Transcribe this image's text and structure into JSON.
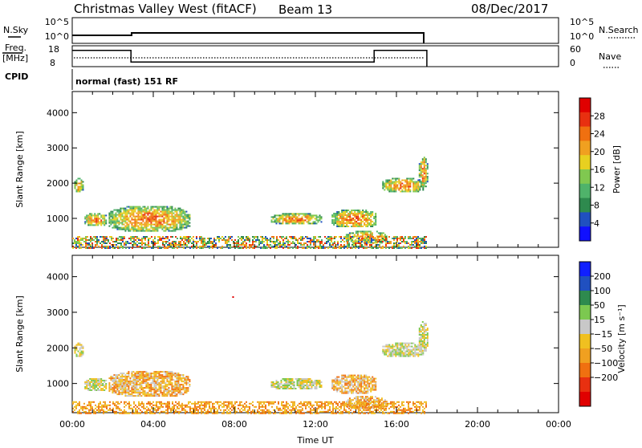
{
  "header": {
    "title": "Christmas Valley West (fitACF)",
    "beam": "Beam 13",
    "date": "08/Dec/2017"
  },
  "sky_panel": {
    "left_label": "N.Sky",
    "left_ticks": [
      "10^5",
      "10^0"
    ],
    "right_label": "N.Search",
    "right_ticks": [
      "10^5",
      "10^0"
    ]
  },
  "freq_panel": {
    "left_label_top": "Freq.",
    "left_label_bottom": "[MHz]",
    "left_ticks": [
      "18",
      "8"
    ],
    "right_label": "Nave",
    "right_ticks": [
      "60",
      "0"
    ],
    "freq_steps": [
      {
        "t0": 0.0,
        "t1": 2.9,
        "mhz": 15.8
      },
      {
        "t0": 2.9,
        "t1": 14.9,
        "mhz": 10.2
      },
      {
        "t0": 14.9,
        "t1": 17.5,
        "mhz": 15.8
      }
    ]
  },
  "cpid": {
    "label": "CPID",
    "value": "normal (fast) 151 RF"
  },
  "chart_data": [
    {
      "type": "heatmap",
      "name": "power",
      "ylabel": "Slant Range [km]",
      "ylim": [
        180,
        4600
      ],
      "yticks": [
        "1000",
        "2000",
        "3000",
        "4000"
      ],
      "xlim": [
        0,
        24
      ],
      "colorbar_label": "Power [dB]",
      "colorbar_ticks": [
        "4",
        "8",
        "12",
        "16",
        "20",
        "24",
        "28"
      ],
      "colorbar_colors": [
        "#1010ff",
        "#2050c0",
        "#2e8a4e",
        "#4fb36a",
        "#80c850",
        "#e8d020",
        "#f0a020",
        "#f07010",
        "#e83010",
        "#e00000"
      ],
      "echo_regions": [
        {
          "t0": 0.1,
          "t1": 0.5,
          "r0": 1750,
          "r1": 2150
        },
        {
          "t0": 0.6,
          "t1": 1.7,
          "r0": 800,
          "r1": 1150
        },
        {
          "t0": 1.8,
          "t1": 5.8,
          "r0": 650,
          "r1": 1350
        },
        {
          "t0": 9.8,
          "t1": 12.3,
          "r0": 850,
          "r1": 1150
        },
        {
          "t0": 12.8,
          "t1": 15.0,
          "r0": 750,
          "r1": 1250
        },
        {
          "t0": 13.5,
          "t1": 15.5,
          "r0": 300,
          "r1": 650
        },
        {
          "t0": 0.0,
          "t1": 17.5,
          "r0": 180,
          "r1": 500
        },
        {
          "t0": 15.3,
          "t1": 17.3,
          "r0": 1750,
          "r1": 2150
        },
        {
          "t0": 17.1,
          "t1": 17.5,
          "r0": 1900,
          "r1": 2750
        }
      ]
    },
    {
      "type": "heatmap",
      "name": "velocity",
      "ylabel": "Slant Range [km]",
      "ylim": [
        180,
        4600
      ],
      "yticks": [
        "1000",
        "2000",
        "3000",
        "4000"
      ],
      "xlim": [
        0,
        24
      ],
      "xlabel": "Time UT",
      "xticks": [
        "00:00",
        "04:00",
        "08:00",
        "12:00",
        "16:00",
        "20:00",
        "00:00"
      ],
      "colorbar_label": "Velocity [m s⁻¹]",
      "colorbar_ticks": [
        "200",
        "100",
        "50",
        "15",
        "−15",
        "−50",
        "−100",
        "−200"
      ],
      "colorbar_colors": [
        "#1020ff",
        "#2050c0",
        "#2e8a4e",
        "#7cc850",
        "#c8c8c8",
        "#f0c020",
        "#f0a020",
        "#f07010",
        "#e83010",
        "#e00000"
      ],
      "echo_regions": [
        {
          "t0": 0.1,
          "t1": 0.5,
          "r0": 1750,
          "r1": 2150
        },
        {
          "t0": 0.6,
          "t1": 1.7,
          "r0": 800,
          "r1": 1150
        },
        {
          "t0": 1.8,
          "t1": 5.8,
          "r0": 650,
          "r1": 1350
        },
        {
          "t0": 9.8,
          "t1": 12.3,
          "r0": 850,
          "r1": 1150
        },
        {
          "t0": 12.8,
          "t1": 15.0,
          "r0": 750,
          "r1": 1250
        },
        {
          "t0": 13.5,
          "t1": 15.5,
          "r0": 300,
          "r1": 650
        },
        {
          "t0": 0.0,
          "t1": 17.5,
          "r0": 180,
          "r1": 500
        },
        {
          "t0": 15.3,
          "t1": 17.3,
          "r0": 1750,
          "r1": 2150
        },
        {
          "t0": 17.1,
          "t1": 17.5,
          "r0": 1900,
          "r1": 2750
        }
      ]
    }
  ]
}
